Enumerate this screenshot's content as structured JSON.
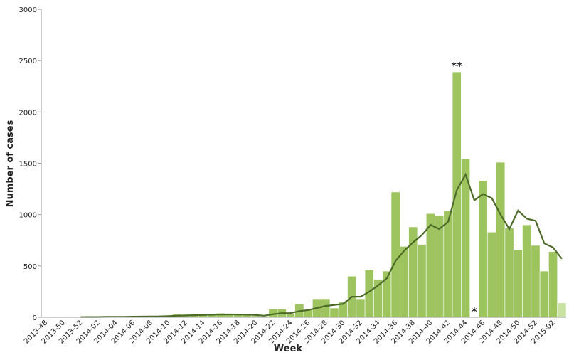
{
  "chart_data": {
    "type": "bar",
    "x_label": "Week",
    "y_label": "Number of cases",
    "categories": [
      "2013-48",
      null,
      "2013-50",
      null,
      "2013-52",
      null,
      "2014-02",
      null,
      "2014-04",
      null,
      "2014-06",
      null,
      "2014-08",
      null,
      "2014-10",
      null,
      "2014-12",
      null,
      "2014-14",
      null,
      "2014-16",
      null,
      "2014-18",
      null,
      "2014-20",
      null,
      "2014-22",
      null,
      "2014-24",
      null,
      "2014-26",
      null,
      "2014-28",
      null,
      "2014-30",
      null,
      "2014-32",
      null,
      "2014-34",
      null,
      "2014-36",
      null,
      "2014-38",
      null,
      "2014-40",
      null,
      "2014-42",
      null,
      "2014-44",
      null,
      "2014-46",
      null,
      "2014-48",
      null,
      "2014-50",
      null,
      "2014-52",
      null,
      "2015-02",
      null
    ],
    "series": [
      {
        "type": "bar",
        "color": "#9dc45f",
        "colors": [
          "#9dc45f",
          "#9dc45f",
          "#9dc45f",
          "#9dc45f",
          "#9dc45f",
          "#9dc45f",
          "#9dc45f",
          "#9dc45f",
          "#9dc45f",
          "#9dc45f",
          "#9dc45f",
          "#9dc45f",
          "#9dc45f",
          "#9dc45f",
          "#9dc45f",
          "#9dc45f",
          "#9dc45f",
          "#9dc45f",
          "#9dc45f",
          "#9dc45f",
          "#9dc45f",
          "#9dc45f",
          "#9dc45f",
          "#9dc45f",
          "#9dc45f",
          "#9dc45f",
          "#9dc45f",
          "#9dc45f",
          "#9dc45f",
          "#9dc45f",
          "#9dc45f",
          "#9dc45f",
          "#9dc45f",
          "#9dc45f",
          "#9dc45f",
          "#9dc45f",
          "#9dc45f",
          "#9dc45f",
          "#9dc45f",
          "#9dc45f",
          "#9dc45f",
          "#9dc45f",
          "#9dc45f",
          "#9dc45f",
          "#9dc45f",
          "#9dc45f",
          "#9dc45f",
          "#9dc45f",
          "#9dc45f",
          "#9dc45f",
          "#9dc45f",
          "#9dc45f",
          "#9dc45f",
          "#9dc45f",
          "#9dc45f",
          "#9dc45f",
          "#9dc45f",
          "#9dc45f",
          "#9dc45f",
          "#c9e2a2"
        ],
        "values": [
          0,
          0,
          0,
          2,
          3,
          3,
          4,
          5,
          4,
          5,
          6,
          7,
          8,
          10,
          12,
          30,
          20,
          22,
          25,
          28,
          40,
          30,
          25,
          20,
          15,
          10,
          80,
          80,
          30,
          130,
          70,
          180,
          180,
          90,
          150,
          400,
          180,
          460,
          370,
          450,
          1220,
          690,
          880,
          710,
          1010,
          990,
          1040,
          2390,
          1540,
          null,
          1330,
          830,
          1510,
          870,
          660,
          900,
          700,
          450,
          640,
          140
        ],
        "annotations": [
          null,
          null,
          null,
          null,
          null,
          null,
          null,
          null,
          null,
          null,
          null,
          null,
          null,
          null,
          null,
          null,
          null,
          null,
          null,
          null,
          null,
          null,
          null,
          null,
          null,
          null,
          null,
          null,
          null,
          null,
          null,
          null,
          null,
          null,
          null,
          null,
          null,
          null,
          null,
          null,
          null,
          null,
          null,
          null,
          null,
          null,
          null,
          "**",
          null,
          "*",
          null,
          null,
          null,
          null,
          null,
          null,
          null,
          null,
          null,
          null
        ]
      },
      {
        "type": "line",
        "color": "#4d6b28",
        "values": [
          null,
          null,
          null,
          null,
          2,
          3,
          3,
          4,
          4,
          5,
          6,
          7,
          8,
          9,
          12,
          15,
          18,
          20,
          22,
          25,
          27,
          28,
          27,
          25,
          22,
          15,
          30,
          40,
          40,
          60,
          70,
          90,
          110,
          120,
          130,
          200,
          200,
          250,
          310,
          380,
          550,
          650,
          730,
          800,
          900,
          860,
          930,
          1240,
          1390,
          1140,
          1200,
          1160,
          1000,
          860,
          1040,
          960,
          940,
          720,
          680,
          570
        ]
      }
    ],
    "ylim": [
      0,
      3000
    ],
    "yticks": [
      0,
      500,
      1000,
      1500,
      2000,
      2500,
      3000
    ],
    "grid": false
  }
}
